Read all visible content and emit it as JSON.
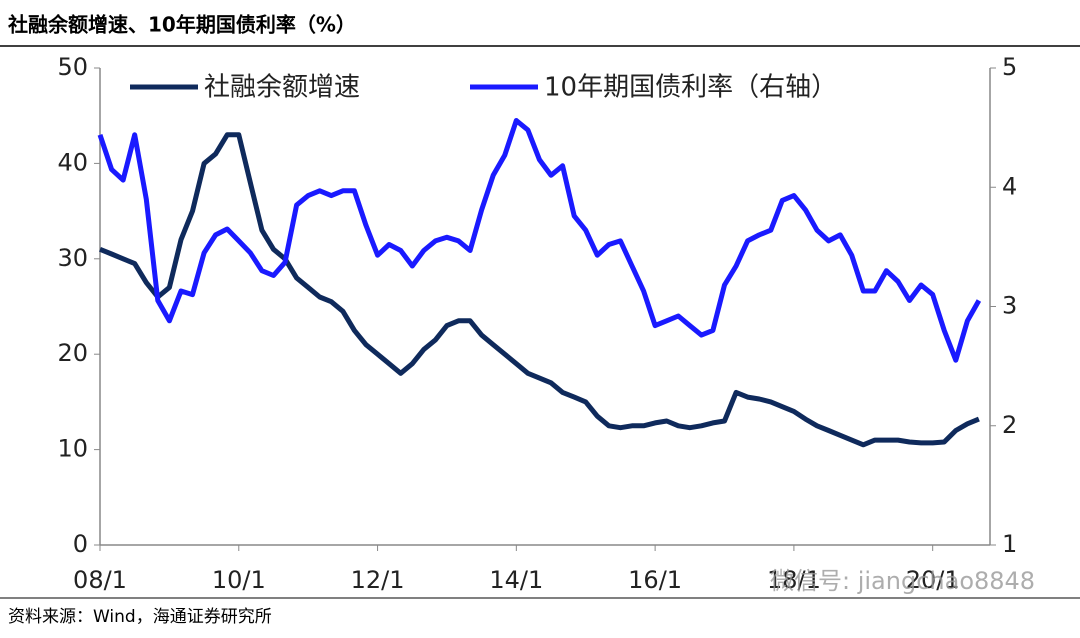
{
  "title": "社融余额增速、10年期国债利率（%）",
  "source": "资料来源：Wind，海通证券研究所",
  "watermark": "微信号: jiangchao8848",
  "chart_data": {
    "type": "line",
    "categories": [
      "08/1",
      null,
      null,
      null,
      null,
      null,
      null,
      null,
      null,
      null,
      null,
      null,
      "10/1",
      null,
      null,
      null,
      null,
      null,
      null,
      null,
      null,
      null,
      null,
      null,
      "12/1",
      null,
      null,
      null,
      null,
      null,
      null,
      null,
      null,
      null,
      null,
      null,
      "14/1",
      null,
      null,
      null,
      null,
      null,
      null,
      null,
      null,
      null,
      null,
      null,
      "16/1",
      null,
      null,
      null,
      null,
      null,
      null,
      null,
      null,
      null,
      null,
      null,
      "18/1",
      null,
      null,
      null,
      null,
      null,
      null,
      null,
      null,
      null,
      null,
      null,
      "20/1",
      null,
      null,
      null,
      null
    ],
    "ylim": [
      0,
      50
    ],
    "yticks": [
      0,
      10,
      20,
      30,
      40,
      50
    ],
    "y2lim": [
      1,
      5
    ],
    "y2ticks": [
      1,
      2,
      3,
      4,
      5
    ],
    "legend": "top",
    "series": [
      {
        "name": "社融余额增速",
        "color": "#0f2a5c",
        "axis": "y",
        "values": [
          31,
          30.5,
          30,
          29.5,
          27.5,
          26,
          27,
          32,
          35,
          40,
          41,
          43,
          43,
          38,
          33,
          31,
          30,
          28,
          27,
          26,
          25.5,
          24.5,
          22.5,
          21,
          20,
          19,
          18,
          19,
          20.5,
          21.5,
          23,
          23.5,
          23.5,
          22,
          21,
          20,
          19,
          18,
          17.5,
          17,
          16,
          15.5,
          15,
          13.5,
          12.5,
          12.3,
          12.5,
          12.5,
          12.8,
          13,
          12.5,
          12.3,
          12.5,
          12.8,
          13,
          16,
          15.5,
          15.3,
          15,
          14.5,
          14,
          13.2,
          12.5,
          12,
          11.5,
          11,
          10.5,
          11,
          11,
          11,
          10.8,
          10.7,
          10.7,
          10.8,
          12,
          12.7,
          13.2
        ]
      },
      {
        "name": "10年期国债利率（右轴）",
        "color": "#1a1aff",
        "axis": "y2",
        "values": [
          4.44,
          4.15,
          4.06,
          4.44,
          3.9,
          3.05,
          2.88,
          3.13,
          3.1,
          3.45,
          3.6,
          3.65,
          3.55,
          3.45,
          3.3,
          3.26,
          3.37,
          3.85,
          3.93,
          3.97,
          3.93,
          3.97,
          3.97,
          3.68,
          3.43,
          3.52,
          3.47,
          3.34,
          3.47,
          3.55,
          3.58,
          3.55,
          3.47,
          3.81,
          4.1,
          4.27,
          4.56,
          4.48,
          4.23,
          4.1,
          4.18,
          3.76,
          3.64,
          3.43,
          3.52,
          3.55,
          3.34,
          3.13,
          2.84,
          2.88,
          2.92,
          2.84,
          2.76,
          2.8,
          3.18,
          3.34,
          3.55,
          3.6,
          3.64,
          3.89,
          3.93,
          3.81,
          3.64,
          3.55,
          3.6,
          3.43,
          3.13,
          3.13,
          3.3,
          3.21,
          3.05,
          3.18,
          3.1,
          2.8,
          2.55,
          2.88,
          3.05
        ]
      }
    ]
  }
}
